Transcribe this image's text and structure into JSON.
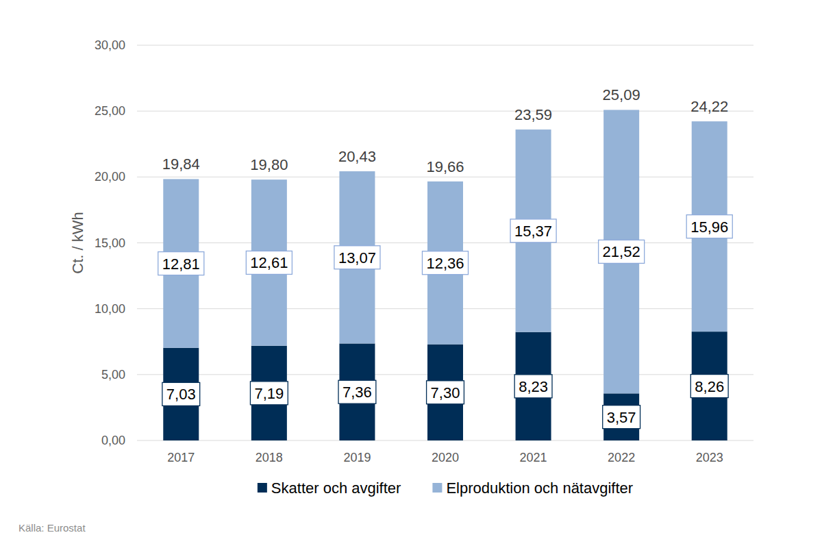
{
  "chart_data": {
    "type": "bar",
    "stacked": true,
    "data_labels": true,
    "grid": true,
    "legend": "bottom",
    "y_label": "Ct. / kWh",
    "source": "Källa: Eurostat",
    "categories": [
      "2017",
      "2018",
      "2019",
      "2020",
      "2021",
      "2022",
      "2023"
    ],
    "series": [
      {
        "name": "Skatter och avgifter",
        "color": "#002d56",
        "values": [
          7.03,
          7.19,
          7.36,
          7.3,
          8.23,
          3.57,
          8.26
        ],
        "value_labels": [
          "7,03",
          "7,19",
          "7,36",
          "7,30",
          "8,23",
          "3,57",
          "8,26"
        ]
      },
      {
        "name": "Elproduktion och nätavgifter",
        "color": "#95b3d7",
        "values": [
          12.81,
          12.61,
          13.07,
          12.36,
          15.37,
          21.52,
          15.96
        ],
        "value_labels": [
          "12,81",
          "12,61",
          "13,07",
          "12,36",
          "15,37",
          "21,52",
          "15,96"
        ]
      }
    ],
    "totals": [
      19.84,
      19.8,
      20.43,
      19.66,
      23.59,
      25.09,
      24.22
    ],
    "total_labels": [
      "19,84",
      "19,80",
      "20,43",
      "19,66",
      "23,59",
      "25,09",
      "24,22"
    ],
    "ylim": [
      0,
      30
    ],
    "yticks": [
      {
        "value": 0,
        "label": "0,00"
      },
      {
        "value": 5,
        "label": "5,00"
      },
      {
        "value": 10,
        "label": "10,00"
      },
      {
        "value": 15,
        "label": "15,00"
      },
      {
        "value": 20,
        "label": "20,00"
      },
      {
        "value": 25,
        "label": "25,00"
      },
      {
        "value": 30,
        "label": "30,00"
      }
    ]
  }
}
